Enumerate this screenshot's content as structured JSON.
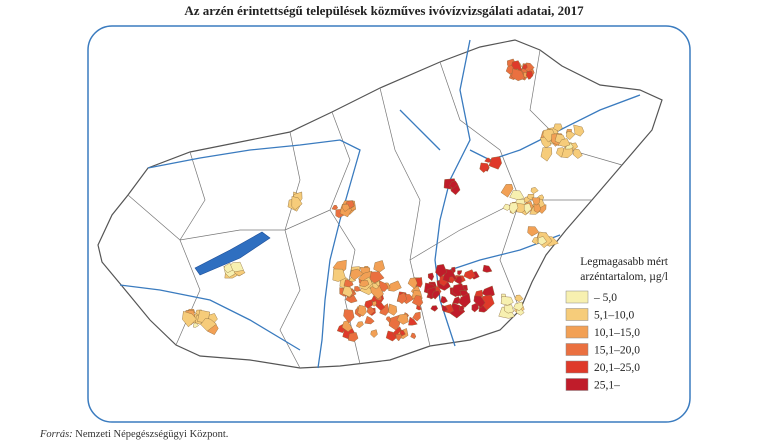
{
  "title": "Az arzén érintettségű települések közműves ivóvízvizsgálati adatai, 2017",
  "legend": {
    "title": [
      "Legmagasabb mért",
      "arzéntartalom, µg/l"
    ],
    "items": [
      {
        "label": "– 5,0",
        "color": "#f7f0b0"
      },
      {
        "label": "5,1–10,0",
        "color": "#f6cc7a"
      },
      {
        "label": "10,1–15,0",
        "color": "#f2a055"
      },
      {
        "label": "15,1–20,0",
        "color": "#ea7040"
      },
      {
        "label": "20,1–25,0",
        "color": "#df3a2a"
      },
      {
        "label": "25,1–",
        "color": "#c01c2a"
      }
    ]
  },
  "source": {
    "label": "Forrás:",
    "text": "Nemzeti Népegészségügyi Központ."
  }
}
